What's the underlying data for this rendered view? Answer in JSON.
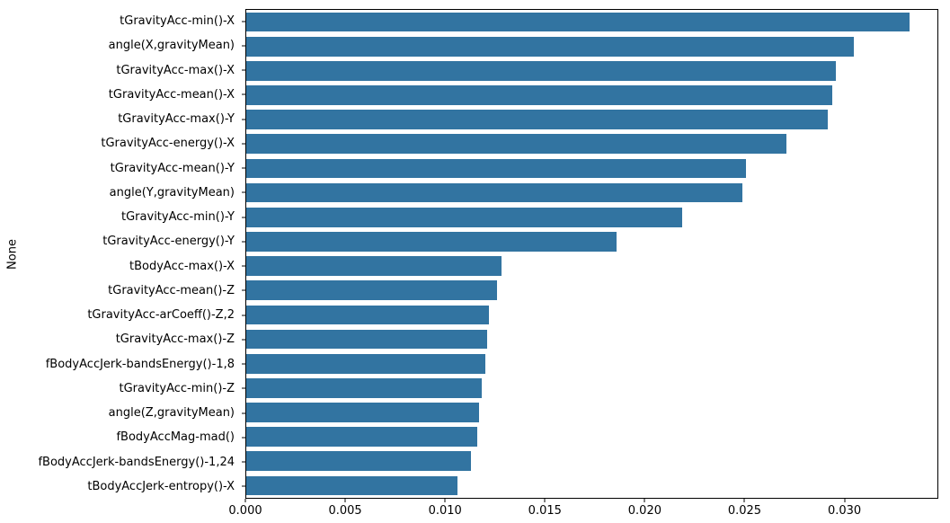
{
  "chart_data": {
    "type": "bar",
    "orientation": "horizontal",
    "title": "",
    "xlabel": "",
    "ylabel": "None",
    "xlim": [
      0,
      0.0347
    ],
    "grid": false,
    "legend": "none",
    "bar_color": "#3274a1",
    "xticks": [
      0.0,
      0.005,
      0.01,
      0.015,
      0.02,
      0.025,
      0.03
    ],
    "xtick_labels": [
      "0.000",
      "0.005",
      "0.010",
      "0.015",
      "0.020",
      "0.025",
      "0.030"
    ],
    "categories": [
      "tGravityAcc-min()-X",
      "angle(X,gravityMean)",
      "tGravityAcc-max()-X",
      "tGravityAcc-mean()-X",
      "tGravityAcc-max()-Y",
      "tGravityAcc-energy()-X",
      "tGravityAcc-mean()-Y",
      "angle(Y,gravityMean)",
      "tGravityAcc-min()-Y",
      "tGravityAcc-energy()-Y",
      "tBodyAcc-max()-X",
      "tGravityAcc-mean()-Z",
      "tGravityAcc-arCoeff()-Z,2",
      "tGravityAcc-max()-Z",
      "fBodyAccJerk-bandsEnergy()-1,8",
      "tGravityAcc-min()-Z",
      "angle(Z,gravityMean)",
      "fBodyAccMag-mad()",
      "fBodyAccJerk-bandsEnergy()-1,24",
      "tBodyAccJerk-entropy()-X"
    ],
    "values": [
      0.0333,
      0.0305,
      0.0296,
      0.0294,
      0.0292,
      0.0271,
      0.0251,
      0.0249,
      0.0219,
      0.0186,
      0.0128,
      0.0126,
      0.0122,
      0.0121,
      0.012,
      0.0118,
      0.0117,
      0.0116,
      0.0113,
      0.0106
    ]
  }
}
